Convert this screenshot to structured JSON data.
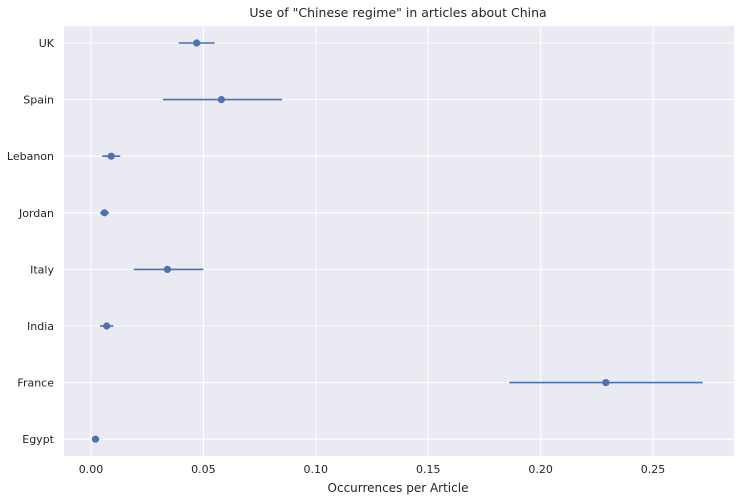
{
  "chart_data": {
    "type": "scatter",
    "title": "Use of \"Chinese regime\" in articles about China",
    "xlabel": "Occurrences per Article",
    "ylabel": "",
    "xlim": [
      -0.012,
      0.286
    ],
    "x_ticks": [
      "0.00",
      "0.05",
      "0.10",
      "0.15",
      "0.20",
      "0.25"
    ],
    "x_tick_values": [
      0.0,
      0.05,
      0.1,
      0.15,
      0.2,
      0.25
    ],
    "grid": true,
    "categories": [
      "UK",
      "Spain",
      "Lebanon",
      "Jordan",
      "Italy",
      "India",
      "France",
      "Egypt"
    ],
    "values": [
      0.047,
      0.058,
      0.009,
      0.006,
      0.034,
      0.007,
      0.229,
      0.002
    ],
    "error_low": [
      0.039,
      0.032,
      0.005,
      0.004,
      0.019,
      0.004,
      0.186,
      0.002
    ],
    "error_high": [
      0.055,
      0.085,
      0.013,
      0.008,
      0.05,
      0.01,
      0.272,
      0.002
    ],
    "colors": {
      "marker": "#4c72b0",
      "background": "#eaeaf2",
      "grid": "#ffffff"
    }
  }
}
